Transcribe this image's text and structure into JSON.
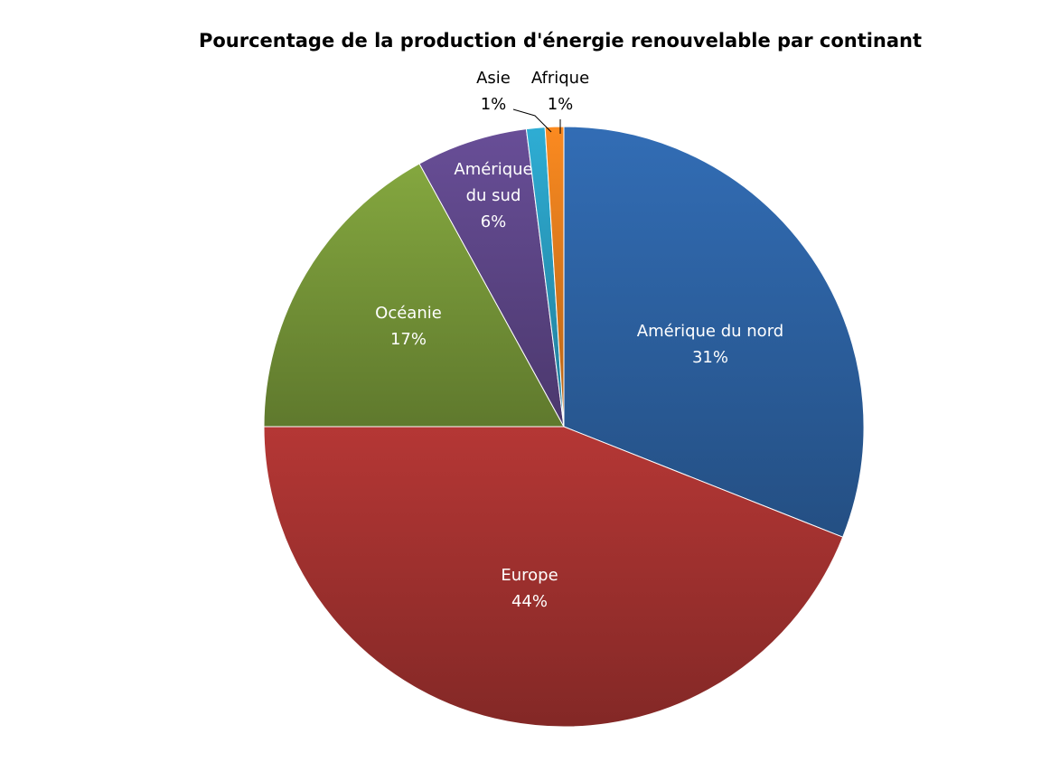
{
  "chart_data": {
    "type": "pie",
    "title": "Pourcentage de la production d'énergie renouvelable par continant",
    "slices": [
      {
        "label": "Amérique du nord",
        "value": 31,
        "display": "31%",
        "color": "#2E65A8"
      },
      {
        "label": "Europe",
        "value": 44,
        "display": "44%",
        "color": "#A83331"
      },
      {
        "label": "Océanie",
        "value": 17,
        "display": "17%",
        "color": "#7A9B3A"
      },
      {
        "label": "Amérique du sud",
        "value": 6,
        "display": "6%",
        "color": "#60488C"
      },
      {
        "label": "Asie",
        "value": 1,
        "display": "1%",
        "color": "#2BA0C4"
      },
      {
        "label": "Afrique",
        "value": 1,
        "display": "1%",
        "color": "#E8801E"
      }
    ],
    "legend": "none",
    "labels": "on slices"
  }
}
